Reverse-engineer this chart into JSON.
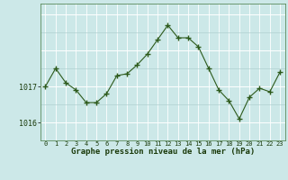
{
  "hours": [
    0,
    1,
    2,
    3,
    4,
    5,
    6,
    7,
    8,
    9,
    10,
    11,
    12,
    13,
    14,
    15,
    16,
    17,
    18,
    19,
    20,
    21,
    22,
    23
  ],
  "pressure": [
    1017.0,
    1017.5,
    1017.1,
    1016.9,
    1016.55,
    1016.55,
    1016.8,
    1017.3,
    1017.35,
    1017.6,
    1017.9,
    1018.3,
    1018.7,
    1018.35,
    1018.35,
    1018.1,
    1017.5,
    1016.9,
    1016.6,
    1016.1,
    1016.7,
    1016.95,
    1016.85,
    1017.4
  ],
  "line_color": "#2d5a1b",
  "marker_color": "#2d5a1b",
  "bg_color": "#cce8e8",
  "grid_color_major": "#ffffff",
  "grid_color_minor": "#b0d0d0",
  "xlabel": "Graphe pression niveau de la mer (hPa)",
  "xlabel_color": "#1a3a0a",
  "tick_color": "#1a3a0a",
  "ytick_labels": [
    "1016",
    "1017"
  ],
  "ytick_values": [
    1016.0,
    1017.0
  ],
  "ylim": [
    1015.5,
    1019.3
  ],
  "xlim": [
    -0.5,
    23.5
  ]
}
